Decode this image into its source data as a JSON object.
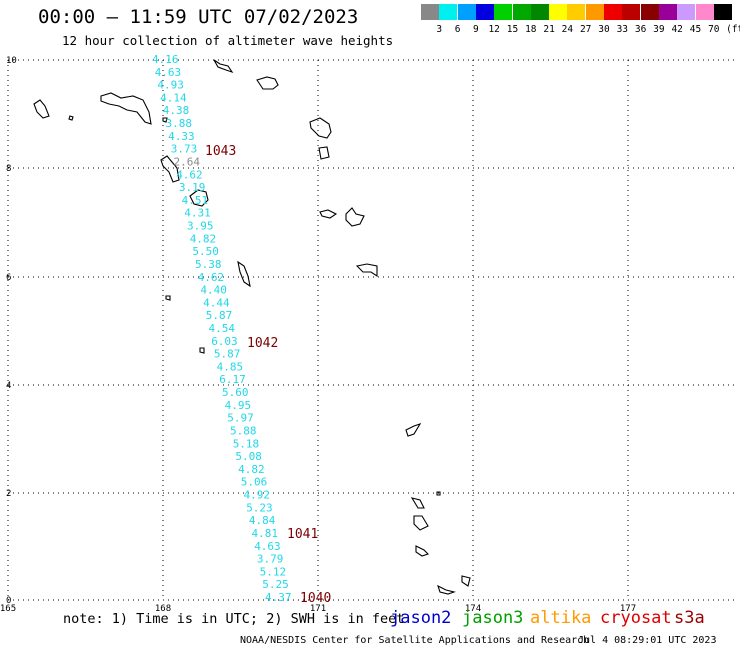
{
  "title": "00:00 – 11:59 UTC 07/02/2023",
  "subtitle": "12 hour collection of altimeter wave heights",
  "colorbar": {
    "colors": [
      "#888888",
      "#00f0f0",
      "#00a0ff",
      "#0000e0",
      "#00d000",
      "#00a800",
      "#008800",
      "#ffff00",
      "#ffcc00",
      "#ff9900",
      "#ee0000",
      "#bb0000",
      "#880000",
      "#990099",
      "#cc99ff",
      "#ff88cc",
      "#000000"
    ],
    "labels": [
      "3",
      "6",
      "9",
      "12",
      "15",
      "18",
      "21",
      "24",
      "27",
      "30",
      "33",
      "36",
      "39",
      "42",
      "45",
      "70"
    ],
    "unit": "(ft)"
  },
  "axes": {
    "x_ticks": [
      "165",
      "168",
      "171",
      "174",
      "177"
    ],
    "y_ticks": [
      "0",
      "2",
      "4",
      "6",
      "8",
      "10"
    ]
  },
  "track": {
    "color": "#22d8e8",
    "values": [
      "4.16",
      "4.63",
      "4.93",
      "4.14",
      "4.38",
      "3.88",
      "4.33",
      "3.73",
      "2.64",
      "4.62",
      "3.19",
      "4.51",
      "4.31",
      "3.95",
      "4.82",
      "5.50",
      "5.38",
      "4.62",
      "4.40",
      "4.44",
      "5.87",
      "4.54",
      "6.03",
      "5.87",
      "4.85",
      "6.17",
      "5.60",
      "4.95",
      "5.97",
      "5.88",
      "5.18",
      "5.08",
      "4.82",
      "5.06",
      "4.92",
      "5.23",
      "4.84",
      "4.81",
      "4.63",
      "3.79",
      "5.12",
      "5.25",
      "4.37"
    ],
    "time_labels": [
      "1043",
      "1042",
      "1041",
      "1040"
    ]
  },
  "note": "note: 1) Time is in UTC; 2) SWH is in feet",
  "satellites": [
    {
      "name": "jason2",
      "color": "#0000cc"
    },
    {
      "name": "jason3",
      "color": "#00a000"
    },
    {
      "name": "altika",
      "color": "#ff9900"
    },
    {
      "name": "cryosat",
      "color": "#dd0000"
    },
    {
      "name": "s3a",
      "color": "#990000"
    }
  ],
  "credit": "NOAA/NESDIS Center for Satellite Applications and Research",
  "generated": "Jul  4 08:29:01 UTC 2023"
}
